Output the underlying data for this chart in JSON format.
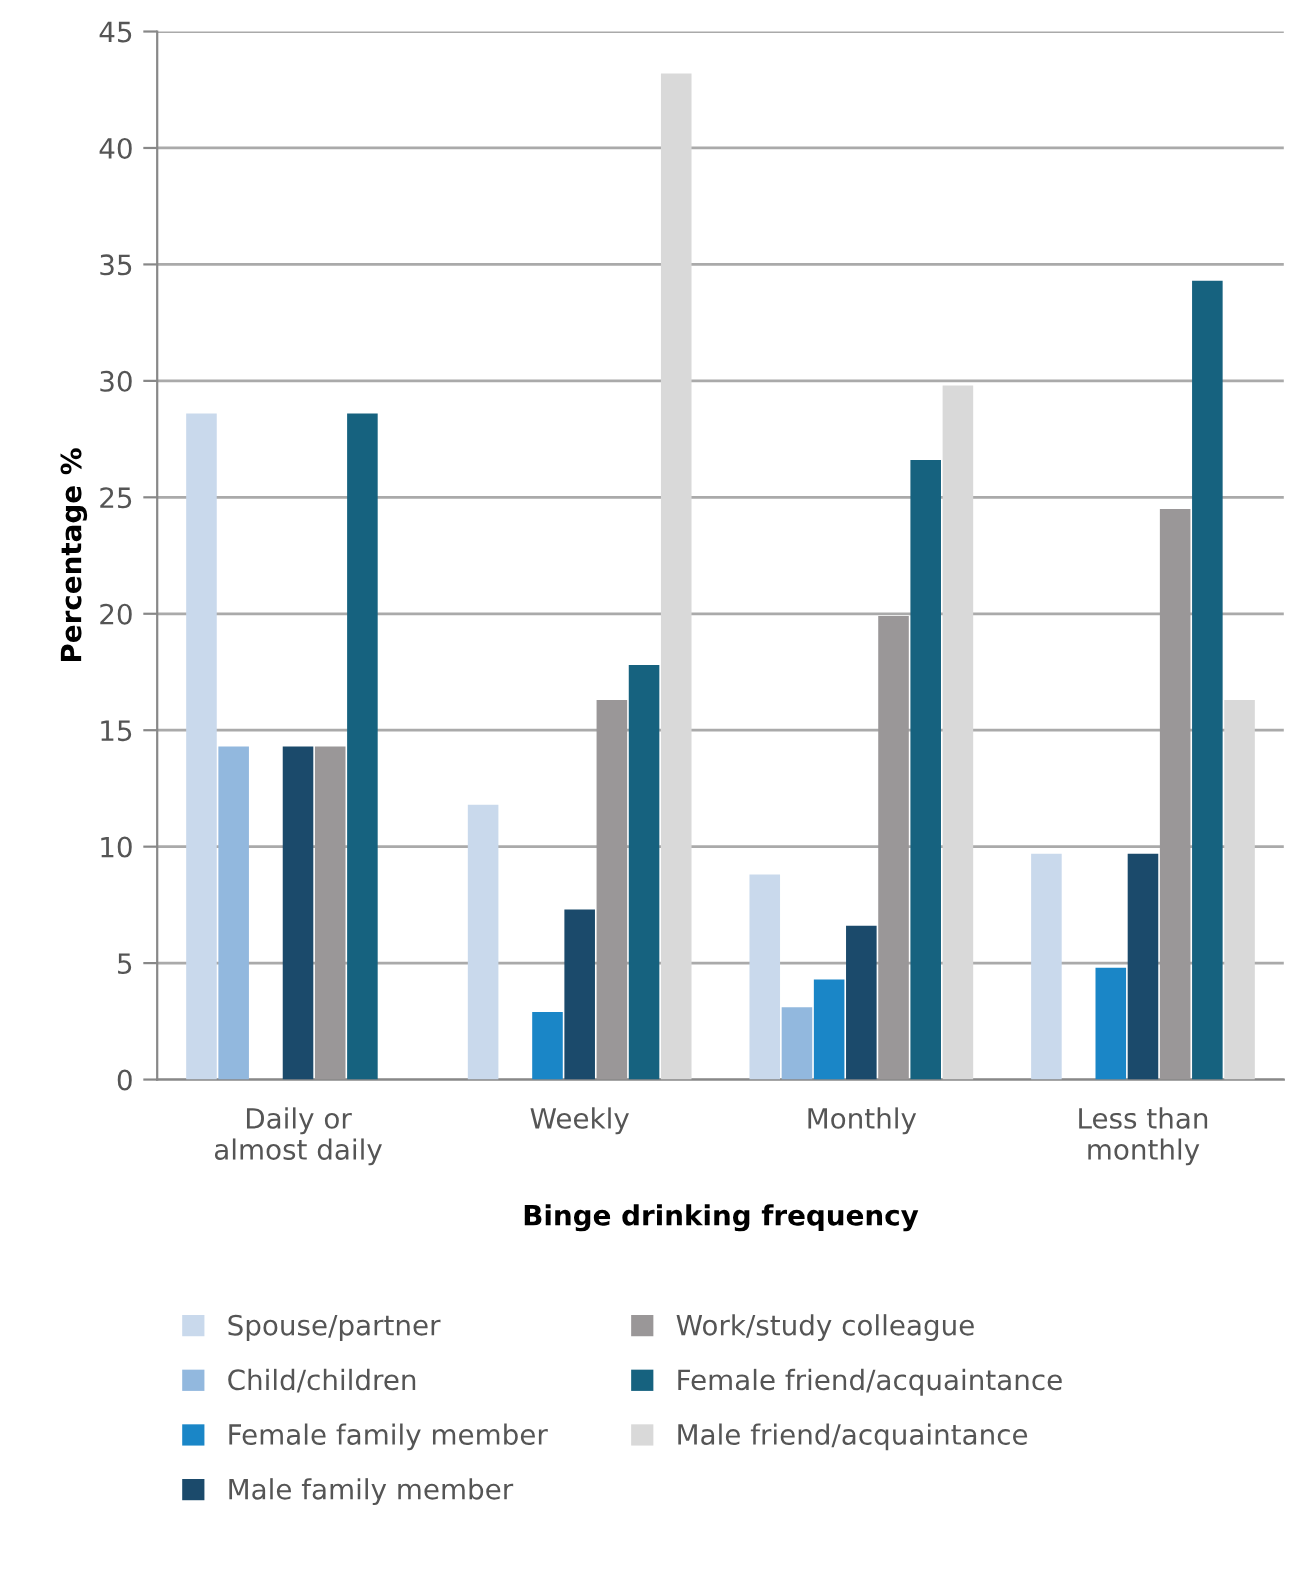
{
  "chart_data": {
    "type": "bar",
    "xlabel": "Binge drinking frequency",
    "ylabel": "Percentage %",
    "categories": [
      "Daily or\nalmost daily",
      "Weekly",
      "Monthly",
      "Less than\nmonthly"
    ],
    "series": [
      {
        "name": "Spouse/partner",
        "color": "#c9d9ec",
        "values": [
          28.6,
          11.8,
          8.8,
          9.7
        ]
      },
      {
        "name": "Child/children",
        "color": "#92b8de",
        "values": [
          14.3,
          0,
          3.1,
          0
        ]
      },
      {
        "name": "Female family member",
        "color": "#1a86c7",
        "values": [
          0,
          2.9,
          4.3,
          4.8
        ]
      },
      {
        "name": "Male family member",
        "color": "#1b4a6b",
        "values": [
          14.3,
          7.3,
          6.6,
          9.7
        ]
      },
      {
        "name": "Work/study colleague",
        "color": "#9a9798",
        "values": [
          14.3,
          16.3,
          19.9,
          24.5
        ]
      },
      {
        "name": "Female friend/acquaintance",
        "color": "#16627f",
        "values": [
          28.6,
          17.8,
          26.6,
          34.3
        ]
      },
      {
        "name": "Male friend/acquaintance",
        "color": "#d9d9d9",
        "values": [
          0,
          43.2,
          29.8,
          16.3
        ]
      }
    ],
    "ylim": [
      0,
      45
    ],
    "yticks": [
      0,
      5,
      10,
      15,
      20,
      25,
      30,
      35,
      40,
      45
    ],
    "grid": "y",
    "legend": "bottom"
  }
}
